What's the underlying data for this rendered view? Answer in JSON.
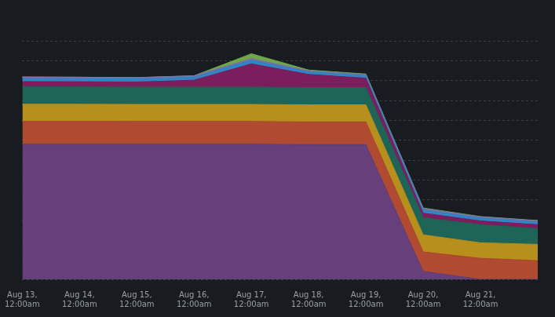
{
  "chart_data": {
    "type": "area",
    "stacked": true,
    "grid": true,
    "tick_labels": "x",
    "categories": [
      "Aug 13, 12:00am",
      "Aug 14, 12:00am",
      "Aug 15, 12:00am",
      "Aug 16, 12:00am",
      "Aug 17, 12:00am",
      "Aug 18, 12:00am",
      "Aug 19, 12:00am",
      "Aug 20, 12:00am",
      "Aug 21, 12:00am",
      null
    ],
    "ylim": [
      0,
      120
    ],
    "yticks": [
      0,
      10,
      20,
      30,
      40,
      50,
      60,
      70,
      80,
      90,
      100,
      110,
      120
    ],
    "series": [
      {
        "color": "#673f7a",
        "values": [
          68,
          68,
          68,
          68,
          68,
          67.8,
          67.8,
          4,
          0,
          0
        ]
      },
      {
        "color": "#b04a30",
        "values": [
          11.5,
          11.5,
          11.4,
          11.4,
          11.4,
          11.4,
          11.4,
          9.8,
          10.6,
          9.4
        ]
      },
      {
        "color": "#b78f1d",
        "values": [
          8.6,
          8.6,
          8.6,
          8.6,
          8.6,
          8.6,
          8.6,
          8.6,
          7.8,
          8.2
        ]
      },
      {
        "color": "#1e6558",
        "values": [
          8.7,
          8.7,
          8.7,
          8.7,
          8.7,
          8.7,
          8.7,
          8.6,
          9.1,
          7.9
        ]
      },
      {
        "color": "#7c1e5e",
        "values": [
          2.7,
          2.6,
          2.6,
          3.5,
          11.7,
          6.6,
          4.7,
          2.3,
          1.9,
          2
        ]
      },
      {
        "color": "#2f86c5",
        "values": [
          1.5,
          1.5,
          1.5,
          1.5,
          1.8,
          1.2,
          1.2,
          1.6,
          1.4,
          1.3
        ]
      },
      {
        "color": "#7e6fb0",
        "values": [
          0.8,
          0.8,
          0.7,
          0.7,
          0.8,
          0.6,
          0.6,
          0.7,
          0.6,
          0.6
        ]
      },
      {
        "color": "#6ea84b",
        "values": [
          0,
          0,
          0,
          0,
          2.5,
          0.4,
          0.3,
          0.3,
          0.2,
          0.2
        ]
      }
    ]
  }
}
